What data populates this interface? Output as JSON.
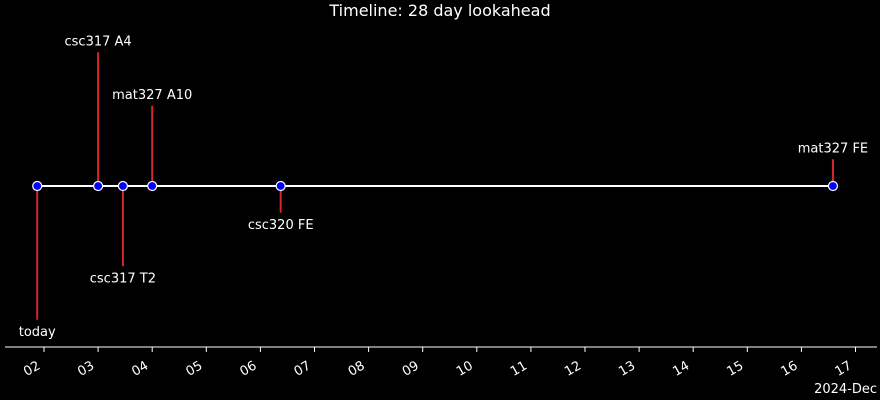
{
  "chart_data": {
    "type": "timeline",
    "title": "Timeline: 28 day lookahead",
    "x_axis_unit_label": "2024-Dec",
    "x_ticks": [
      "02",
      "03",
      "04",
      "05",
      "06",
      "07",
      "08",
      "09",
      "10",
      "11",
      "12",
      "13",
      "14",
      "15",
      "16",
      "17"
    ],
    "xlim": [
      "2024-12-01",
      "2024-12-17"
    ],
    "events": [
      {
        "label": "today",
        "date": "2024-12-01T21:00",
        "stem": -2.5
      },
      {
        "label": "csc317 A4",
        "date": "2024-12-03T00:00",
        "stem": 2.5
      },
      {
        "label": "csc317 T2",
        "date": "2024-12-03T11:00",
        "stem": -1.5
      },
      {
        "label": "mat327 A10",
        "date": "2024-12-04T00:00",
        "stem": 1.5
      },
      {
        "label": "csc320 FE",
        "date": "2024-12-06T09:00",
        "stem": -0.5
      },
      {
        "label": "mat327 FE",
        "date": "2024-12-16T14:00",
        "stem": 0.5
      }
    ],
    "colors": {
      "background": "#000000",
      "baseline": "#ffffff",
      "stem": "#d62728",
      "marker_fill": "#0000ff",
      "marker_edge": "#ffffff",
      "text": "#ffffff"
    }
  }
}
